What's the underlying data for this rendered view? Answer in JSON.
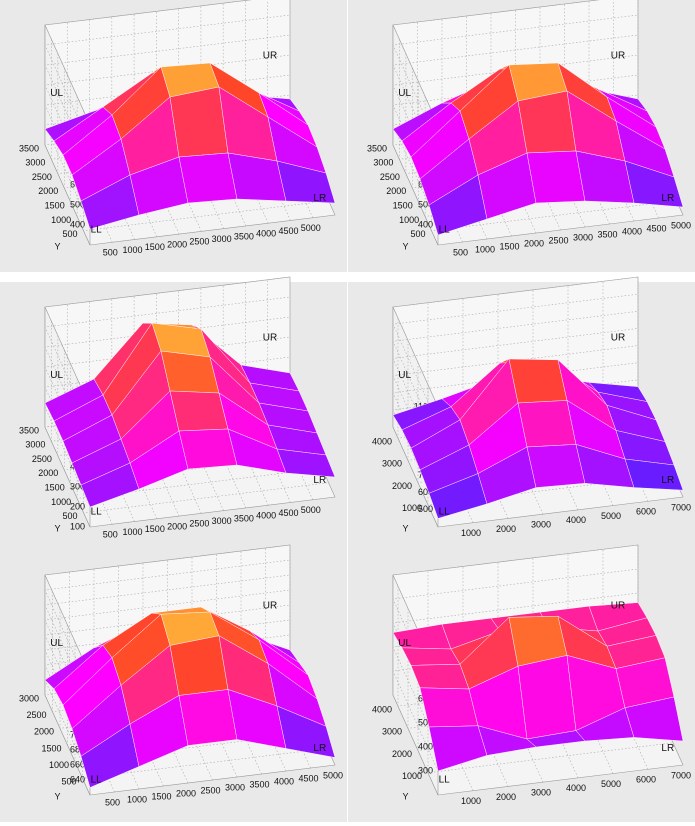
{
  "chart_data": [
    {
      "type": "surface",
      "corner_labels": [
        "UL",
        "UR",
        "LL",
        "LR"
      ],
      "ylabel": "Y",
      "xlim": [
        0,
        5500
      ],
      "xticks": [
        500,
        1000,
        1500,
        2000,
        2500,
        3000,
        3500,
        4000,
        4500,
        5000
      ],
      "ylim": [
        0,
        3500
      ],
      "yticks": [
        500,
        1000,
        1500,
        2000,
        2500,
        3000,
        3500
      ],
      "zlim": [
        300,
        900
      ],
      "zticks": [
        400,
        500,
        600,
        700,
        800,
        900
      ],
      "z": [
        [
          380,
          420,
          450,
          440,
          400,
          360
        ],
        [
          420,
          520,
          580,
          570,
          500,
          410
        ],
        [
          450,
          600,
          780,
          800,
          620,
          440
        ],
        [
          450,
          620,
          830,
          820,
          640,
          450
        ],
        [
          420,
          560,
          700,
          690,
          560,
          420
        ],
        [
          380,
          440,
          480,
          470,
          430,
          380
        ]
      ]
    },
    {
      "type": "surface",
      "corner_labels": [
        "UL",
        "UR",
        "LL",
        "LR"
      ],
      "ylabel": "Y",
      "xlim": [
        0,
        5000
      ],
      "xticks": [
        500,
        1000,
        1500,
        2000,
        2500,
        3000,
        3500,
        4000,
        4500,
        5000
      ],
      "ylim": [
        0,
        3500
      ],
      "yticks": [
        500,
        1000,
        1500,
        2000,
        2500,
        3000,
        3500
      ],
      "zlim": [
        300,
        900
      ],
      "zticks": [
        400,
        500,
        600,
        700,
        800,
        900
      ],
      "z": [
        [
          350,
          400,
          450,
          430,
          390,
          340
        ],
        [
          400,
          520,
          600,
          580,
          500,
          390
        ],
        [
          430,
          600,
          760,
          780,
          600,
          430
        ],
        [
          440,
          640,
          840,
          820,
          620,
          440
        ],
        [
          420,
          580,
          720,
          700,
          560,
          420
        ],
        [
          380,
          480,
          560,
          540,
          460,
          380
        ]
      ]
    },
    {
      "type": "surface",
      "corner_labels": [
        "UL",
        "UR",
        "LL",
        "LR"
      ],
      "ylabel": "Y",
      "xlim": [
        0,
        5500
      ],
      "xticks": [
        500,
        1000,
        1500,
        2000,
        2500,
        3000,
        3500,
        4000,
        4500,
        5000
      ],
      "ylim": [
        0,
        3500
      ],
      "yticks": [
        500,
        1000,
        1500,
        2000,
        2500,
        3000,
        3500
      ],
      "zlim": [
        100,
        700
      ],
      "zticks": [
        100,
        200,
        300,
        400,
        500,
        600,
        700
      ],
      "z": [
        [
          200,
          260,
          330,
          320,
          250,
          200
        ],
        [
          210,
          290,
          420,
          400,
          270,
          210
        ],
        [
          220,
          310,
          520,
          480,
          290,
          220
        ],
        [
          230,
          330,
          620,
          560,
          300,
          230
        ],
        [
          230,
          330,
          660,
          600,
          300,
          230
        ],
        [
          220,
          310,
          560,
          520,
          290,
          220
        ]
      ]
    },
    {
      "type": "surface",
      "corner_labels": [
        "UL",
        "UR",
        "LL",
        "LR"
      ],
      "ylabel": "Y",
      "xlim": [
        0,
        7000
      ],
      "xticks": [
        1000,
        2000,
        3000,
        4000,
        5000,
        6000,
        7000
      ],
      "ylim": [
        0,
        4500
      ],
      "yticks": [
        1000,
        2000,
        3000,
        4000
      ],
      "zlim": [
        400,
        1100
      ],
      "zticks": [
        500,
        600,
        700,
        800,
        900,
        1000,
        1100
      ],
      "z": [
        [
          450,
          500,
          560,
          550,
          490,
          440
        ],
        [
          480,
          560,
          680,
          660,
          540,
          470
        ],
        [
          500,
          610,
          820,
          800,
          590,
          490
        ],
        [
          510,
          640,
          960,
          920,
          620,
          500
        ],
        [
          500,
          600,
          820,
          800,
          580,
          490
        ],
        [
          470,
          530,
          600,
          590,
          520,
          460
        ]
      ]
    },
    {
      "type": "surface",
      "corner_labels": [
        "UL",
        "UR",
        "LL",
        "LR"
      ],
      "ylabel": "Y",
      "xlim": [
        0,
        5000
      ],
      "xticks": [
        500,
        1000,
        1500,
        2000,
        2500,
        3000,
        3500,
        4000,
        4500,
        5000
      ],
      "ylim": [
        0,
        3000
      ],
      "yticks": [
        500,
        1000,
        1500,
        2000,
        2500,
        3000
      ],
      "zlim": [
        620,
        780
      ],
      "zticks": [
        640,
        660,
        680,
        700,
        720,
        740,
        760,
        780
      ],
      "z": [
        [
          630,
          650,
          670,
          670,
          650,
          630
        ],
        [
          645,
          680,
          710,
          710,
          680,
          645
        ],
        [
          655,
          705,
          750,
          755,
          710,
          655
        ],
        [
          660,
          715,
          765,
          760,
          715,
          660
        ],
        [
          655,
          705,
          740,
          740,
          700,
          650
        ],
        [
          640,
          675,
          700,
          700,
          670,
          640
        ]
      ]
    },
    {
      "type": "surface",
      "corner_labels": [
        "UL",
        "UR",
        "LL",
        "LR"
      ],
      "ylabel": "Y",
      "xlim": [
        0,
        7000
      ],
      "xticks": [
        1000,
        2000,
        3000,
        4000,
        5000,
        6000,
        7000
      ],
      "ylim": [
        0,
        4500
      ],
      "yticks": [
        1000,
        2000,
        3000,
        4000
      ],
      "zlim": [
        200,
        700
      ],
      "zticks": [
        300,
        400,
        500,
        600,
        700
      ],
      "z": [
        [
          300,
          340,
          350,
          350,
          340,
          300
        ],
        [
          400,
          380,
          300,
          310,
          380,
          400
        ],
        [
          480,
          450,
          520,
          540,
          460,
          480
        ],
        [
          490,
          470,
          640,
          620,
          470,
          490
        ],
        [
          480,
          450,
          500,
          490,
          450,
          480
        ],
        [
          460,
          470,
          470,
          470,
          470,
          460
        ]
      ]
    }
  ]
}
